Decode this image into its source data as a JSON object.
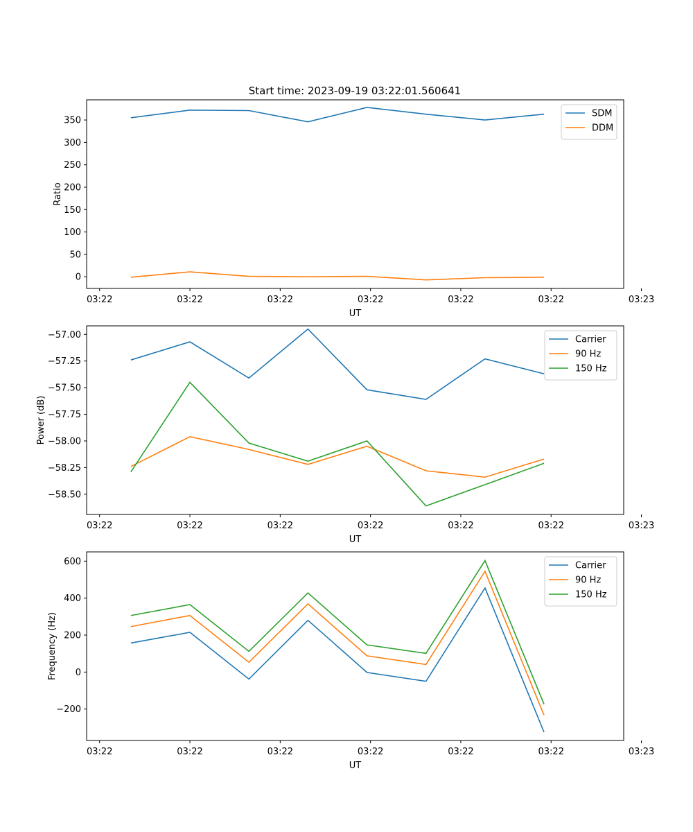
{
  "figure": {
    "title": "Start time: 2023-09-19 03:22:01.560641"
  },
  "x_tick_labels": [
    "03:22",
    "03:22",
    "03:22",
    "03:22",
    "03:22",
    "03:22",
    "03:23"
  ],
  "colors": {
    "blue": "#1f77b4",
    "orange": "#ff7f0e",
    "green": "#2ca02c"
  },
  "chart_data": [
    {
      "type": "line",
      "title": "Start time: 2023-09-19 03:22:01.560641",
      "xlabel": "UT",
      "ylabel": "Ratio",
      "x_index": [
        1,
        2,
        3,
        4,
        5,
        6,
        7,
        8
      ],
      "xlim": [
        0.25,
        9.35
      ],
      "x_ticks": [
        0.47,
        2.0,
        3.53,
        5.06,
        6.59,
        8.12,
        9.65
      ],
      "ylim": [
        -26,
        395
      ],
      "y_ticks": [
        0,
        50,
        100,
        150,
        200,
        250,
        300,
        350
      ],
      "y_tick_labels": [
        "0",
        "50",
        "100",
        "150",
        "200",
        "250",
        "300",
        "350"
      ],
      "legend": "top-right",
      "series": [
        {
          "name": "SDM",
          "color": "#1f77b4",
          "values": [
            355,
            372,
            371,
            346,
            378,
            363,
            350,
            363
          ]
        },
        {
          "name": "DDM",
          "color": "#ff7f0e",
          "values": [
            -1,
            11,
            1,
            0,
            1,
            -7,
            -2,
            -1
          ]
        }
      ]
    },
    {
      "type": "line",
      "xlabel": "UT",
      "ylabel": "Power (dB)",
      "x_index": [
        1,
        2,
        3,
        4,
        5,
        6,
        7,
        8
      ],
      "xlim": [
        0.25,
        9.35
      ],
      "x_ticks": [
        0.47,
        2.0,
        3.53,
        5.06,
        6.59,
        8.12,
        9.65
      ],
      "ylim": [
        -58.69,
        -56.92
      ],
      "y_ticks": [
        -57.0,
        -57.25,
        -57.5,
        -57.75,
        -58.0,
        -58.25,
        -58.5
      ],
      "y_tick_labels": [
        "−57.00",
        "−57.25",
        "−57.50",
        "−57.75",
        "−58.00",
        "−58.25",
        "−58.50"
      ],
      "legend": "top-right",
      "series": [
        {
          "name": "Carrier",
          "color": "#1f77b4",
          "values": [
            -57.24,
            -57.07,
            -57.41,
            -56.95,
            -57.52,
            -57.61,
            -57.23,
            -57.37
          ]
        },
        {
          "name": "90 Hz",
          "color": "#ff7f0e",
          "values": [
            -58.24,
            -57.96,
            -58.08,
            -58.22,
            -58.05,
            -58.28,
            -58.34,
            -58.17
          ]
        },
        {
          "name": "150 Hz",
          "color": "#2ca02c",
          "values": [
            -58.29,
            -57.45,
            -58.02,
            -58.19,
            -58.0,
            -58.61,
            -58.41,
            -58.21
          ]
        }
      ]
    },
    {
      "type": "line",
      "xlabel": "UT",
      "ylabel": "Frequency (Hz)",
      "x_index": [
        1,
        2,
        3,
        4,
        5,
        6,
        7,
        8
      ],
      "xlim": [
        0.25,
        9.35
      ],
      "x_ticks": [
        0.47,
        2.0,
        3.53,
        5.06,
        6.59,
        8.12,
        9.65
      ],
      "ylim": [
        -370,
        650
      ],
      "y_ticks": [
        600,
        400,
        200,
        0,
        -200
      ],
      "y_tick_labels": [
        "600",
        "400",
        "200",
        "0",
        "−200"
      ],
      "legend": "top-right",
      "series": [
        {
          "name": "Carrier",
          "color": "#1f77b4",
          "values": [
            157,
            215,
            -38,
            280,
            -2,
            -50,
            455,
            -325
          ]
        },
        {
          "name": "90 Hz",
          "color": "#ff7f0e",
          "values": [
            246,
            306,
            53,
            369,
            88,
            41,
            545,
            -233
          ]
        },
        {
          "name": "150 Hz",
          "color": "#2ca02c",
          "values": [
            306,
            365,
            112,
            428,
            147,
            101,
            603,
            -174
          ]
        }
      ]
    }
  ]
}
